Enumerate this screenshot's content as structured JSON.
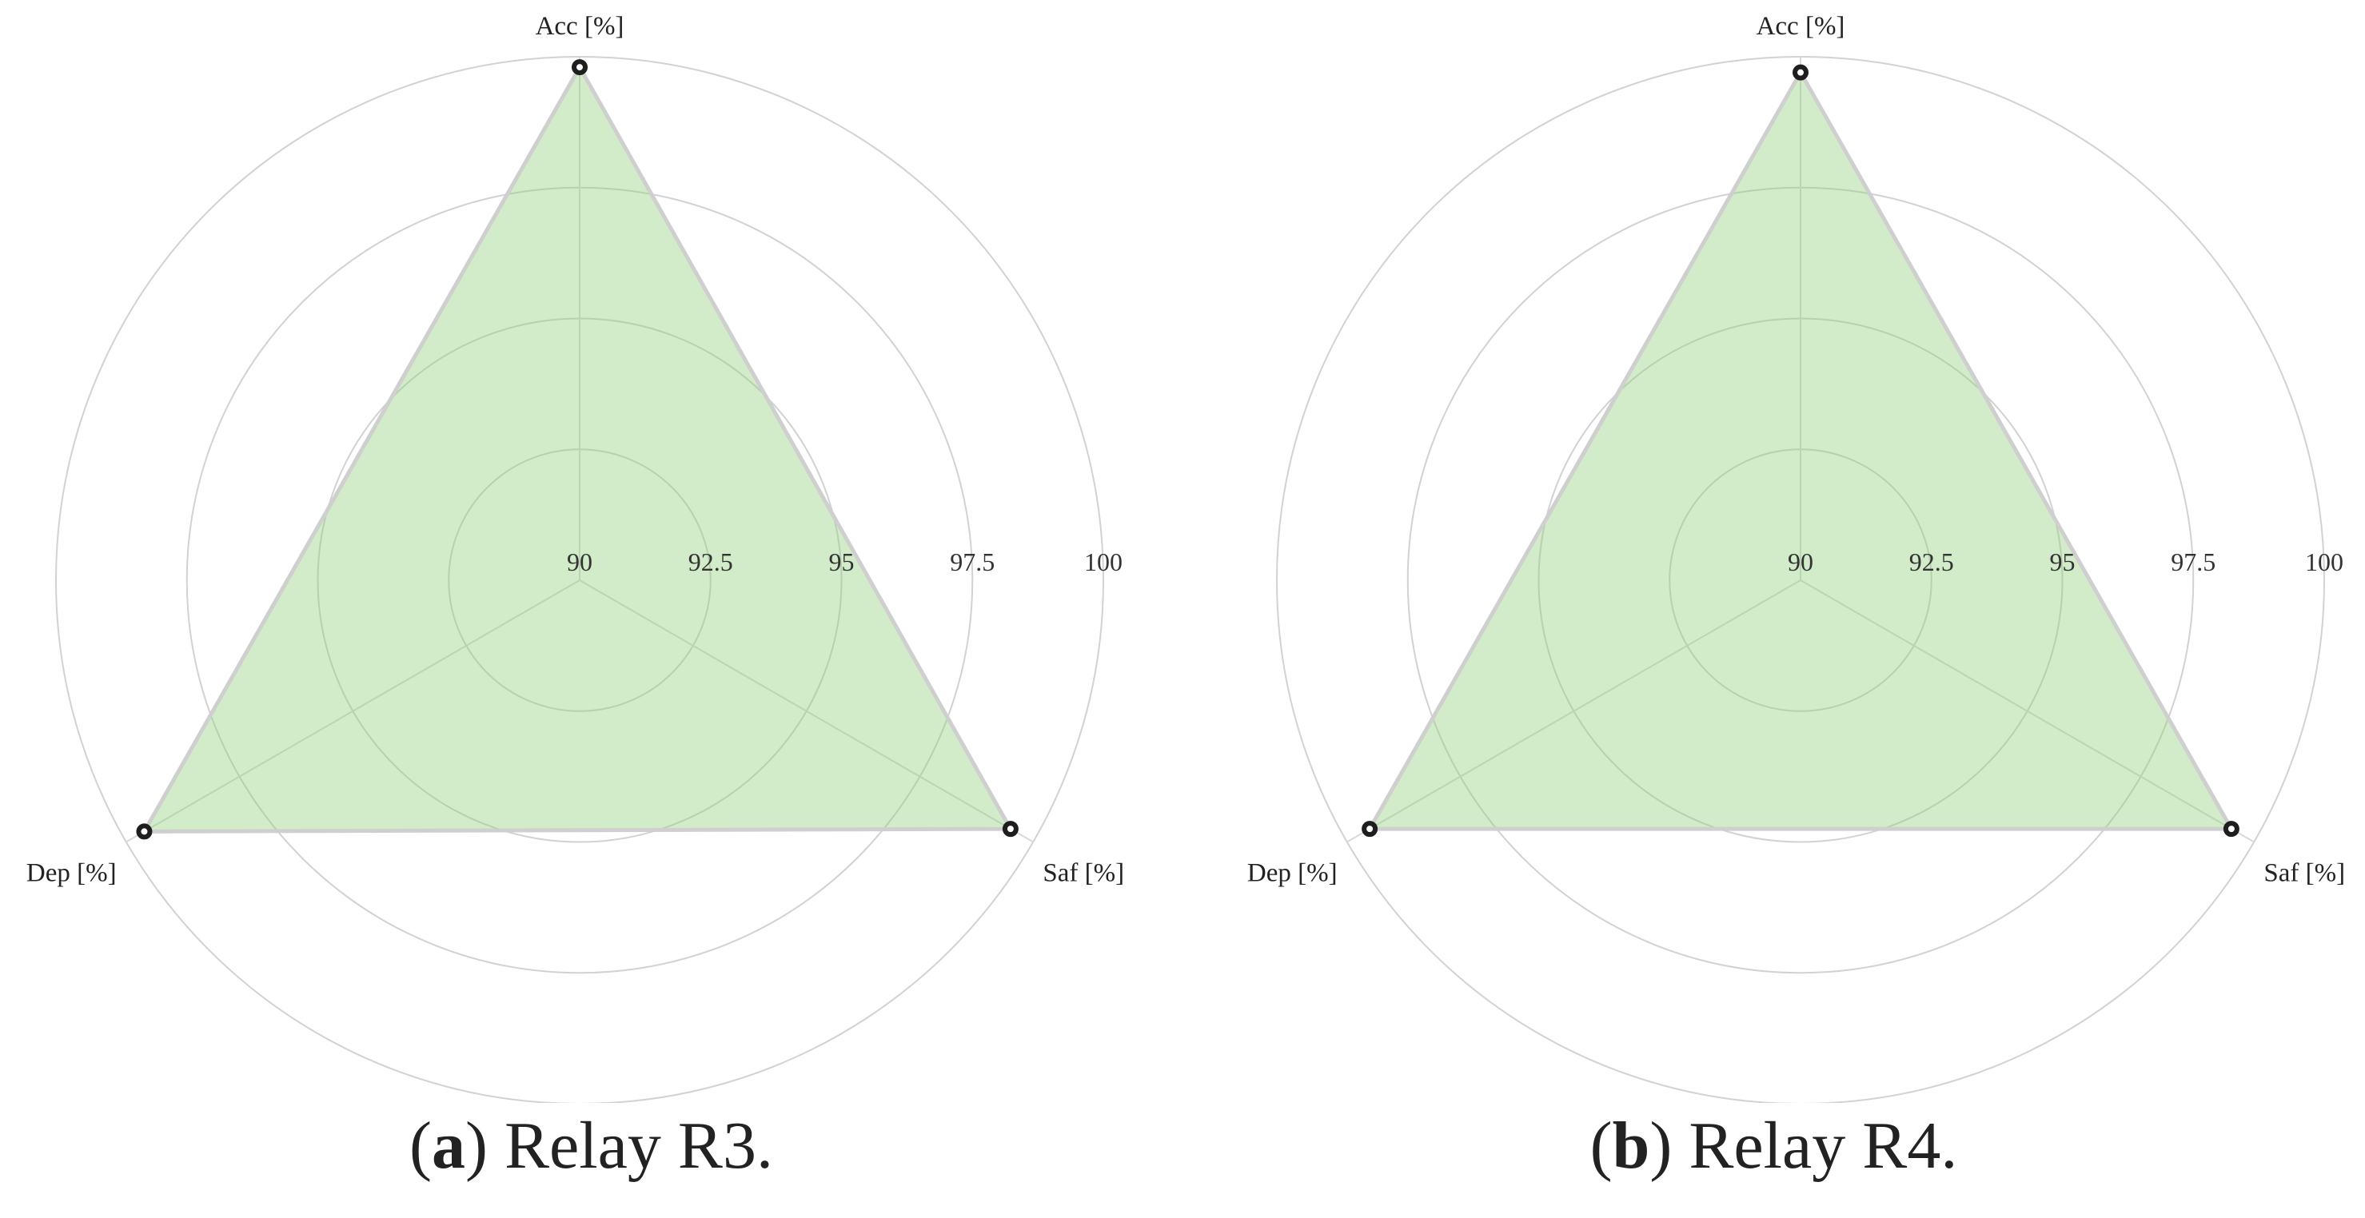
{
  "chart_data": [
    {
      "type": "radar",
      "axes": [
        "Acc [%]",
        "Saf [%]",
        "Dep [%]"
      ],
      "rlim": [
        90,
        100
      ],
      "rticks": [
        "90",
        "92.5",
        "95",
        "97.5",
        "100"
      ],
      "values": [
        99.8,
        99.5,
        99.6
      ],
      "fill_color": "#8fd07a",
      "caption": {
        "letter": "a",
        "text": "Relay R3."
      }
    },
    {
      "type": "radar",
      "axes": [
        "Acc [%]",
        "Saf [%]",
        "Dep [%]"
      ],
      "rlim": [
        90,
        100
      ],
      "rticks": [
        "90",
        "92.5",
        "95",
        "97.5",
        "100"
      ],
      "values": [
        99.7,
        99.5,
        99.5
      ],
      "fill_color": "#8fd07a",
      "caption": {
        "letter": "b",
        "text": "Relay R4."
      }
    }
  ]
}
